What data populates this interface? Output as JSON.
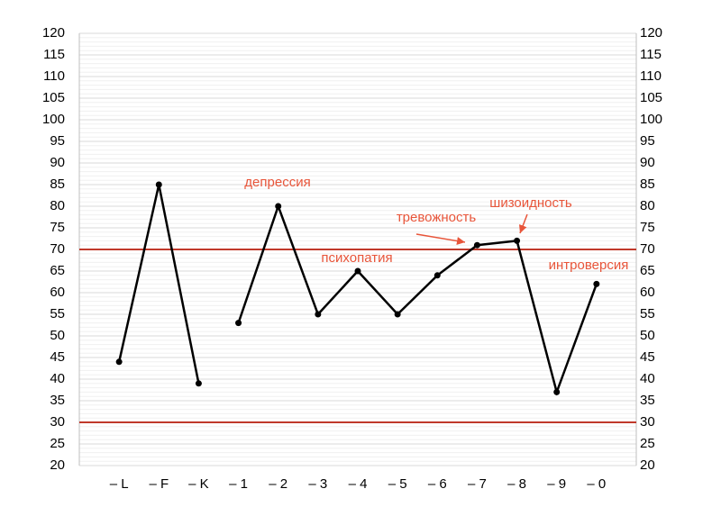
{
  "chart_data": {
    "type": "line",
    "categories": [
      "– L",
      "– F",
      "– K",
      "– 1",
      "– 2",
      "– 3",
      "– 4",
      "– 5",
      "– 6",
      "– 7",
      "– 8",
      "– 9",
      "– 0"
    ],
    "series": [
      {
        "color": "#000000",
        "values": [
          44,
          85,
          39,
          null,
          null,
          null,
          null,
          null,
          null,
          null,
          null,
          null,
          null
        ]
      },
      {
        "color": "#000000",
        "values": [
          null,
          null,
          null,
          53,
          80,
          55,
          65,
          55,
          64,
          71,
          72,
          37,
          62
        ]
      }
    ],
    "ylim": [
      20,
      120
    ],
    "yticks": [
      20,
      25,
      30,
      35,
      40,
      45,
      50,
      55,
      60,
      65,
      70,
      75,
      80,
      85,
      90,
      95,
      100,
      105,
      110,
      115,
      120
    ],
    "grid": true,
    "reference_lines": [
      {
        "value": 70,
        "color": "#c0392b"
      },
      {
        "value": 30,
        "color": "#c0392b"
      }
    ],
    "annotation_color": "#e8553a",
    "annotations": [
      "депрессия",
      "психопатия",
      "тревожность",
      "шизоидность",
      "интроверсия"
    ]
  }
}
